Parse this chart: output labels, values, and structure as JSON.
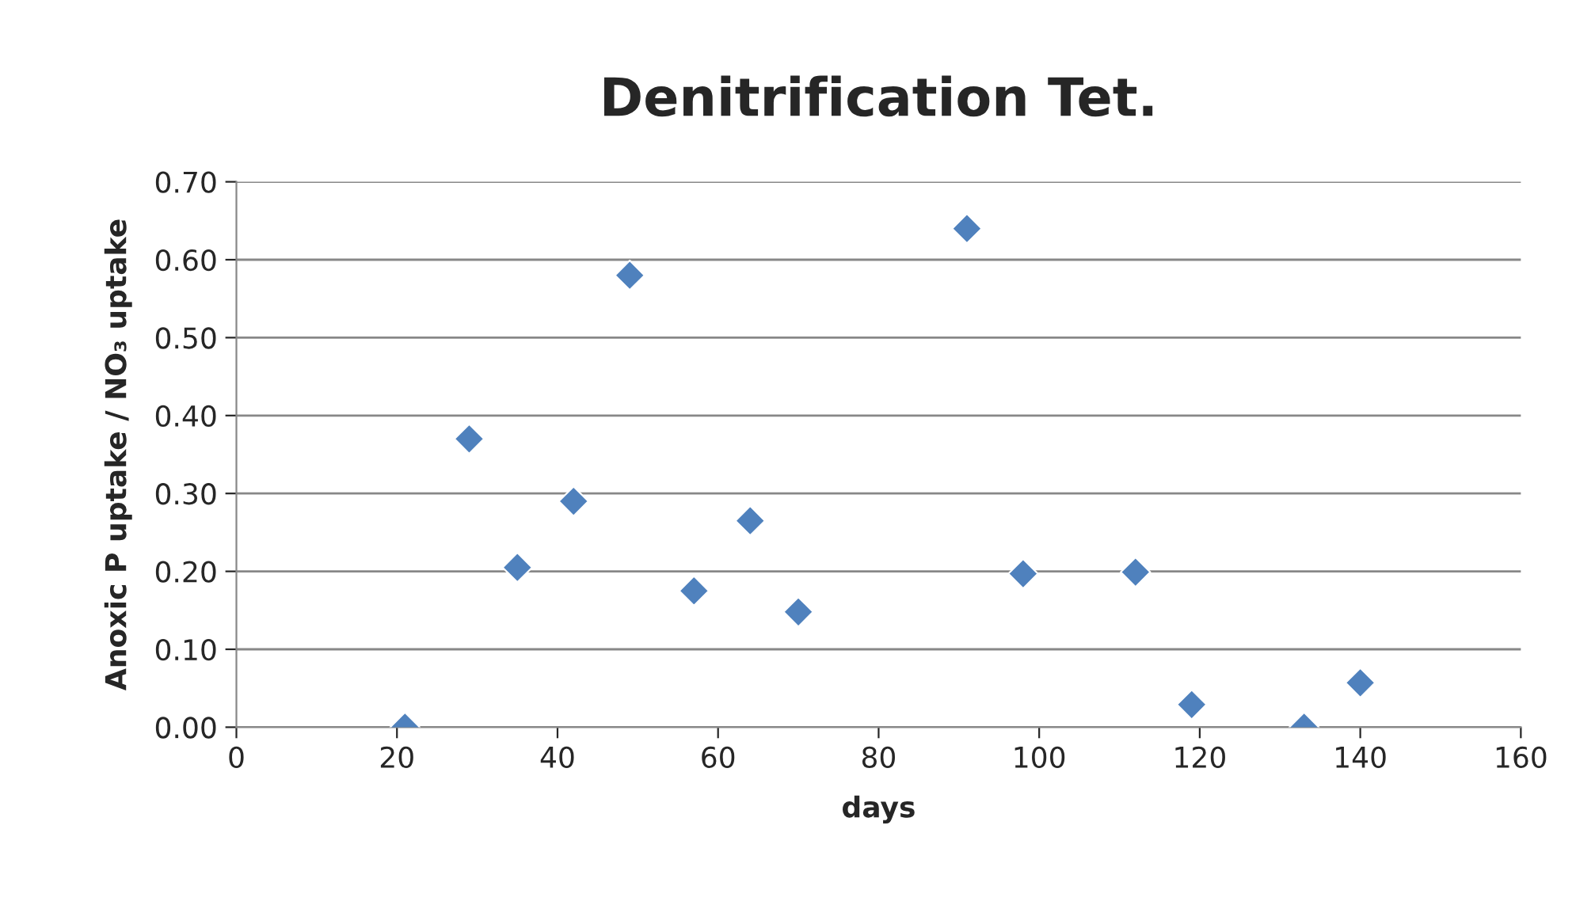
{
  "chart_data": {
    "type": "scatter",
    "title": "Denitrification Tet.",
    "xlabel": "days",
    "ylabel": "Anoxic P uptake / NO₃ uptake",
    "x": [
      21,
      29,
      35,
      42,
      49,
      57,
      64,
      70,
      91,
      98,
      112,
      119,
      133,
      140
    ],
    "values": [
      0.0,
      0.37,
      0.205,
      0.29,
      0.58,
      0.175,
      0.265,
      0.148,
      0.64,
      0.197,
      0.199,
      0.029,
      0.0,
      0.057
    ],
    "color": "#4f81bd",
    "marker": "diamond",
    "grid": "y",
    "legend": false,
    "xlim": [
      0,
      160
    ],
    "xticks": [
      0,
      20,
      40,
      60,
      80,
      100,
      120,
      140,
      160
    ],
    "ylim": [
      0,
      0.7
    ],
    "yticks": [
      {
        "value": 0,
        "label": "0.00"
      },
      {
        "value": 0.1,
        "label": "0.10"
      },
      {
        "value": 0.2,
        "label": "0.20"
      },
      {
        "value": 0.3,
        "label": "0.30"
      },
      {
        "value": 0.4,
        "label": "0.40"
      },
      {
        "value": 0.5,
        "label": "0.50"
      },
      {
        "value": 0.6,
        "label": "0.60"
      },
      {
        "value": 0.7,
        "label": "0.70"
      }
    ]
  }
}
